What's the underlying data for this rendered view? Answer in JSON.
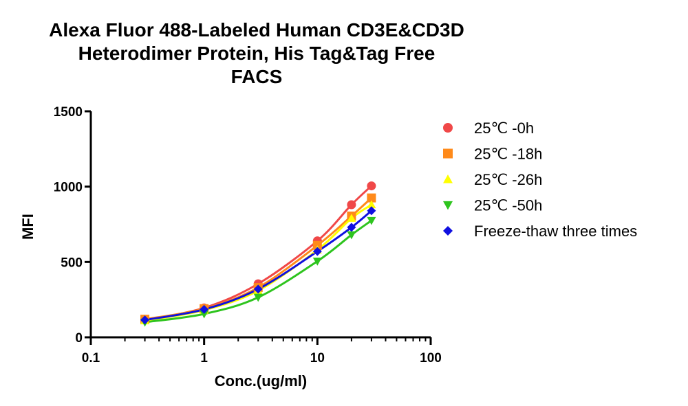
{
  "chart_data": {
    "type": "scatter",
    "title_lines": [
      "Alexa Fluor 488-Labeled Human CD3E&CD3D",
      "Heterodimer Protein, His Tag&Tag Free",
      "FACS"
    ],
    "xlabel": "Conc.(ug/ml)",
    "ylabel": "MFI",
    "x_scale": "log",
    "xlim": [
      0.1,
      100
    ],
    "ylim": [
      0,
      1500
    ],
    "x_ticks": [
      "0.1",
      "1",
      "10",
      "100"
    ],
    "y_ticks": [
      "0",
      "500",
      "1000",
      "1500"
    ],
    "grid": false,
    "legend_position": "right",
    "series": [
      {
        "name": "25℃ -0h",
        "color": "#f04848",
        "marker": "circle",
        "x": [
          0.3,
          1,
          3,
          10,
          20,
          30
        ],
        "y": [
          115,
          195,
          355,
          640,
          880,
          1005
        ]
      },
      {
        "name": "25℃ -18h",
        "color": "#ff8a1a",
        "marker": "square",
        "x": [
          0.3,
          1,
          3,
          10,
          20,
          30
        ],
        "y": [
          120,
          190,
          330,
          610,
          805,
          925
        ]
      },
      {
        "name": "25℃ -26h",
        "color": "#ffff00",
        "marker": "triangle-up",
        "x": [
          0.3,
          1,
          3,
          10,
          20,
          30
        ],
        "y": [
          110,
          180,
          310,
          580,
          790,
          880
        ]
      },
      {
        "name": "25℃ -50h",
        "color": "#2ec41e",
        "marker": "triangle-down",
        "x": [
          0.3,
          1,
          3,
          10,
          20,
          30
        ],
        "y": [
          100,
          155,
          265,
          505,
          680,
          775
        ]
      },
      {
        "name": "Freeze-thaw three times",
        "color": "#1010e0",
        "marker": "diamond",
        "x": [
          0.3,
          1,
          3,
          10,
          20,
          30
        ],
        "y": [
          115,
          185,
          320,
          570,
          730,
          840
        ]
      }
    ]
  }
}
